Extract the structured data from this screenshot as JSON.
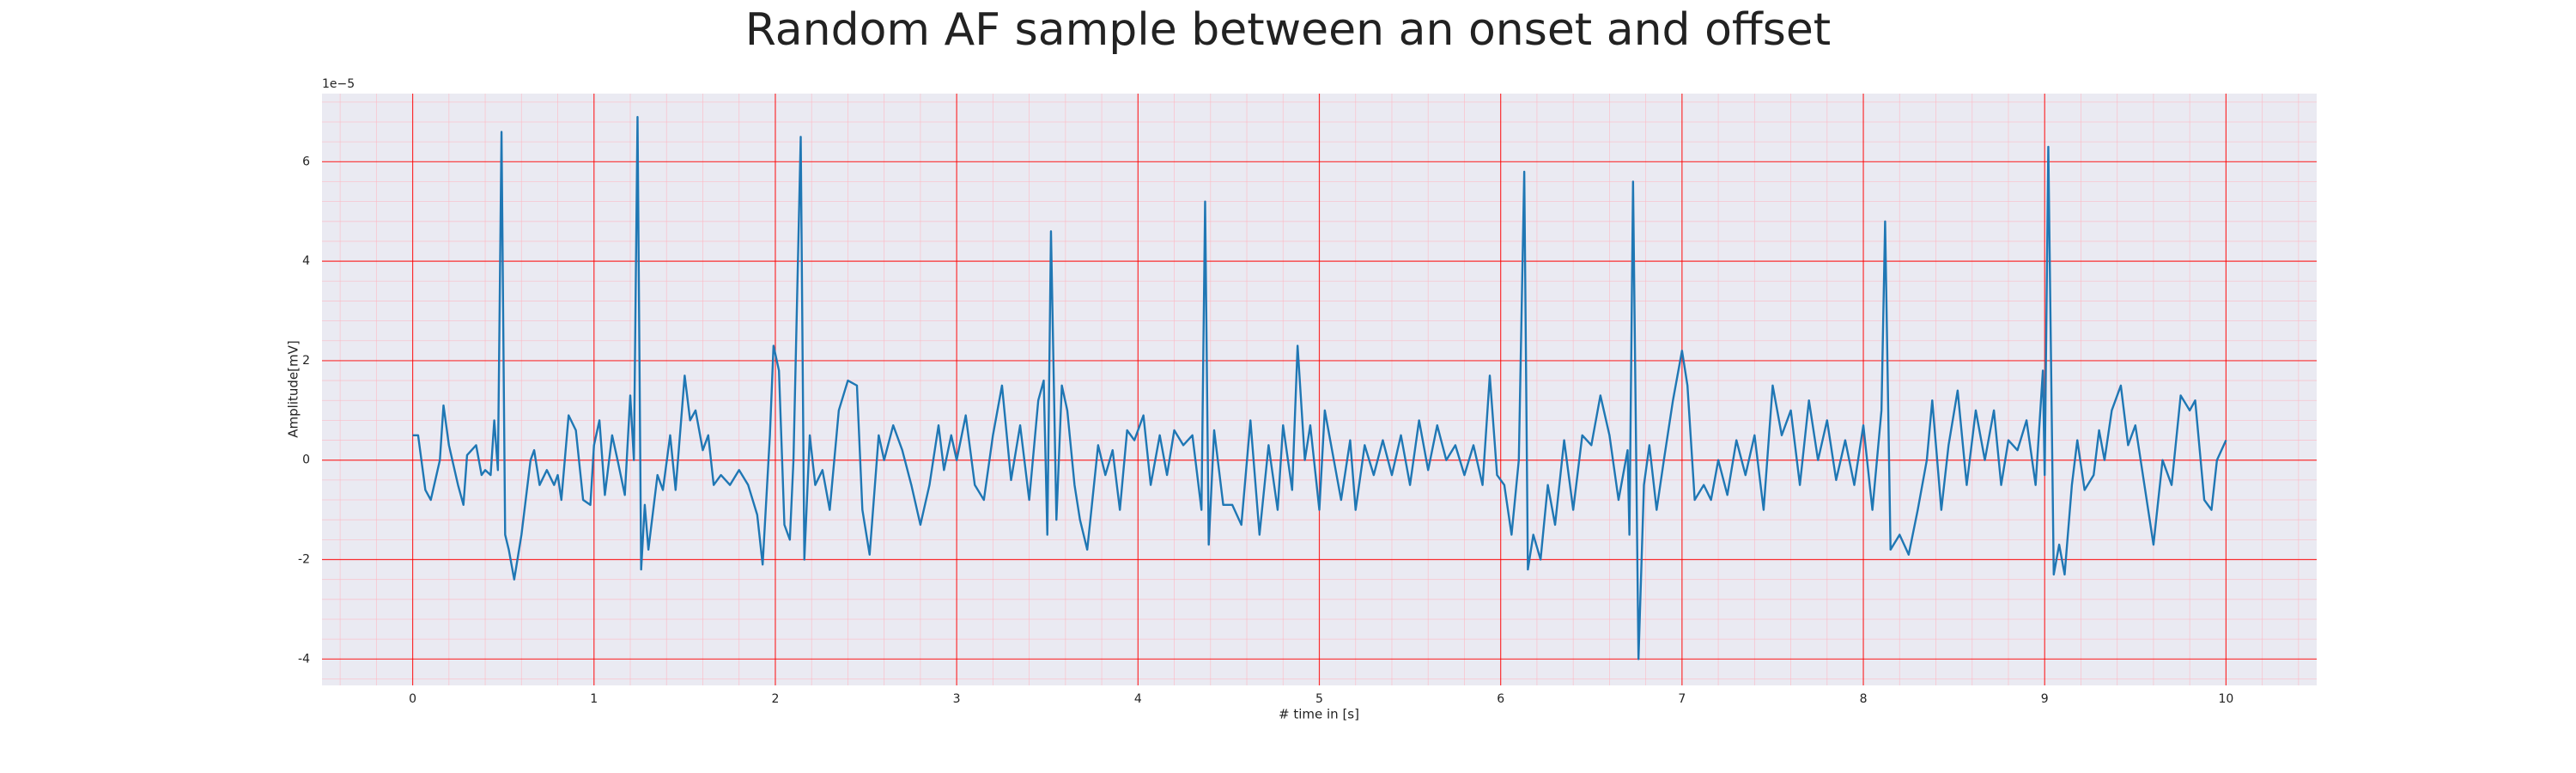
{
  "chart_data": {
    "type": "line",
    "title": "Random AF sample between an onset and offset",
    "xlabel": "# time in [s]",
    "ylabel": "Amplitude[mV]",
    "y_offset_label": "1e−5",
    "xlim": [
      -0.5,
      10.5
    ],
    "ylim": [
      -4.53,
      7.37
    ],
    "xticks": [
      0,
      1,
      2,
      3,
      4,
      5,
      6,
      7,
      8,
      9,
      10
    ],
    "yticks": [
      -4,
      -2,
      0,
      2,
      4,
      6
    ],
    "grid": true,
    "minor_grid": true,
    "grid_color": "#ff0000",
    "minor_grid_color": "#ffb6c1",
    "background": "#eaeaf2",
    "color": "#1f77b4",
    "x": [
      0,
      0.03,
      0.07,
      0.1,
      0.15,
      0.17,
      0.2,
      0.25,
      0.28,
      0.3,
      0.35,
      0.38,
      0.4,
      0.43,
      0.45,
      0.47,
      0.49,
      0.51,
      0.53,
      0.56,
      0.6,
      0.65,
      0.67,
      0.7,
      0.74,
      0.78,
      0.8,
      0.82,
      0.86,
      0.9,
      0.94,
      0.98,
      1.0,
      1.03,
      1.06,
      1.1,
      1.13,
      1.17,
      1.2,
      1.22,
      1.24,
      1.26,
      1.28,
      1.3,
      1.35,
      1.38,
      1.42,
      1.45,
      1.5,
      1.53,
      1.56,
      1.6,
      1.63,
      1.66,
      1.7,
      1.75,
      1.8,
      1.85,
      1.9,
      1.93,
      1.97,
      1.99,
      2.02,
      2.05,
      2.08,
      2.1,
      2.14,
      2.16,
      2.19,
      2.22,
      2.26,
      2.3,
      2.35,
      2.4,
      2.45,
      2.48,
      2.52,
      2.57,
      2.6,
      2.65,
      2.7,
      2.75,
      2.8,
      2.85,
      2.9,
      2.93,
      2.97,
      3.0,
      3.05,
      3.1,
      3.15,
      3.2,
      3.25,
      3.3,
      3.35,
      3.4,
      3.45,
      3.48,
      3.5,
      3.52,
      3.55,
      3.58,
      3.61,
      3.65,
      3.68,
      3.72,
      3.78,
      3.82,
      3.86,
      3.9,
      3.94,
      3.98,
      4.03,
      4.07,
      4.12,
      4.16,
      4.2,
      4.25,
      4.3,
      4.35,
      4.37,
      4.39,
      4.42,
      4.47,
      4.52,
      4.57,
      4.62,
      4.67,
      4.72,
      4.77,
      4.8,
      4.85,
      4.88,
      4.92,
      4.95,
      5.0,
      5.03,
      5.08,
      5.12,
      5.17,
      5.2,
      5.25,
      5.3,
      5.35,
      5.4,
      5.45,
      5.5,
      5.55,
      5.6,
      5.65,
      5.7,
      5.75,
      5.8,
      5.85,
      5.9,
      5.94,
      5.98,
      6.02,
      6.06,
      6.1,
      6.13,
      6.15,
      6.18,
      6.22,
      6.26,
      6.3,
      6.35,
      6.4,
      6.45,
      6.5,
      6.55,
      6.6,
      6.65,
      6.7,
      6.71,
      6.73,
      6.76,
      6.79,
      6.82,
      6.86,
      6.9,
      6.95,
      7.0,
      7.03,
      7.07,
      7.12,
      7.16,
      7.2,
      7.25,
      7.3,
      7.35,
      7.4,
      7.45,
      7.5,
      7.55,
      7.6,
      7.65,
      7.7,
      7.75,
      7.8,
      7.85,
      7.9,
      7.95,
      8.0,
      8.05,
      8.1,
      8.12,
      8.15,
      8.2,
      8.25,
      8.3,
      8.35,
      8.38,
      8.43,
      8.47,
      8.52,
      8.57,
      8.62,
      8.67,
      8.72,
      8.76,
      8.8,
      8.85,
      8.9,
      8.95,
      8.99,
      9.0,
      9.02,
      9.05,
      9.08,
      9.11,
      9.15,
      9.18,
      9.22,
      9.27,
      9.3,
      9.33,
      9.37,
      9.42,
      9.46,
      9.5,
      9.55,
      9.6,
      9.65,
      9.7,
      9.75,
      9.8,
      9.83,
      9.88,
      9.92,
      9.95,
      10.0
    ],
    "values": [
      0.5,
      0.5,
      -0.6,
      -0.8,
      0.0,
      1.1,
      0.3,
      -0.5,
      -0.9,
      0.1,
      0.3,
      -0.3,
      -0.2,
      -0.3,
      0.8,
      -0.2,
      6.6,
      -1.5,
      -1.8,
      -2.4,
      -1.5,
      0.0,
      0.2,
      -0.5,
      -0.2,
      -0.5,
      -0.3,
      -0.8,
      0.9,
      0.6,
      -0.8,
      -0.9,
      0.3,
      0.8,
      -0.7,
      0.5,
      0.0,
      -0.7,
      1.3,
      0.0,
      6.9,
      -2.2,
      -0.9,
      -1.8,
      -0.3,
      -0.6,
      0.5,
      -0.6,
      1.7,
      0.8,
      1.0,
      0.2,
      0.5,
      -0.5,
      -0.3,
      -0.5,
      -0.2,
      -0.5,
      -1.1,
      -2.1,
      0.5,
      2.3,
      1.8,
      -1.3,
      -1.6,
      0.0,
      6.5,
      -2.0,
      0.5,
      -0.5,
      -0.2,
      -1.0,
      1.0,
      1.6,
      1.5,
      -1.0,
      -1.9,
      0.5,
      0.0,
      0.7,
      0.2,
      -0.5,
      -1.3,
      -0.5,
      0.7,
      -0.2,
      0.5,
      0.0,
      0.9,
      -0.5,
      -0.8,
      0.5,
      1.5,
      -0.4,
      0.7,
      -0.8,
      1.2,
      1.6,
      -1.5,
      4.6,
      -1.2,
      1.5,
      1.0,
      -0.5,
      -1.2,
      -1.8,
      0.3,
      -0.3,
      0.2,
      -1.0,
      0.6,
      0.4,
      0.9,
      -0.5,
      0.5,
      -0.3,
      0.6,
      0.3,
      0.5,
      -1.0,
      5.2,
      -1.7,
      0.6,
      -0.9,
      -0.9,
      -1.3,
      0.8,
      -1.5,
      0.3,
      -1.0,
      0.7,
      -0.6,
      2.3,
      0.0,
      0.7,
      -1.0,
      1.0,
      0.0,
      -0.8,
      0.4,
      -1.0,
      0.3,
      -0.3,
      0.4,
      -0.3,
      0.5,
      -0.5,
      0.8,
      -0.2,
      0.7,
      0.0,
      0.3,
      -0.3,
      0.3,
      -0.5,
      1.7,
      -0.3,
      -0.5,
      -1.5,
      0.0,
      5.8,
      -2.2,
      -1.5,
      -2.0,
      -0.5,
      -1.3,
      0.4,
      -1.0,
      0.5,
      0.3,
      1.3,
      0.5,
      -0.8,
      0.2,
      -1.5,
      5.6,
      -4.0,
      -0.5,
      0.3,
      -1.0,
      0.0,
      1.2,
      2.2,
      1.5,
      -0.8,
      -0.5,
      -0.8,
      0.0,
      -0.7,
      0.4,
      -0.3,
      0.5,
      -1.0,
      1.5,
      0.5,
      1.0,
      -0.5,
      1.2,
      0.0,
      0.8,
      -0.4,
      0.4,
      -0.5,
      0.7,
      -1.0,
      1.0,
      4.8,
      -1.8,
      -1.5,
      -1.9,
      -1.0,
      0.0,
      1.2,
      -1.0,
      0.3,
      1.4,
      -0.5,
      1.0,
      0.0,
      1.0,
      -0.5,
      0.4,
      0.2,
      0.8,
      -0.5,
      1.8,
      -0.3,
      6.3,
      -2.3,
      -1.7,
      -2.3,
      -0.5,
      0.4,
      -0.6,
      -0.3,
      0.6,
      0.0,
      1.0,
      1.5,
      0.3,
      0.7,
      -0.5,
      -1.7,
      0.0,
      -0.5,
      1.3,
      1.0,
      1.2,
      -0.8,
      -1.0,
      0.0,
      0.4
    ]
  }
}
